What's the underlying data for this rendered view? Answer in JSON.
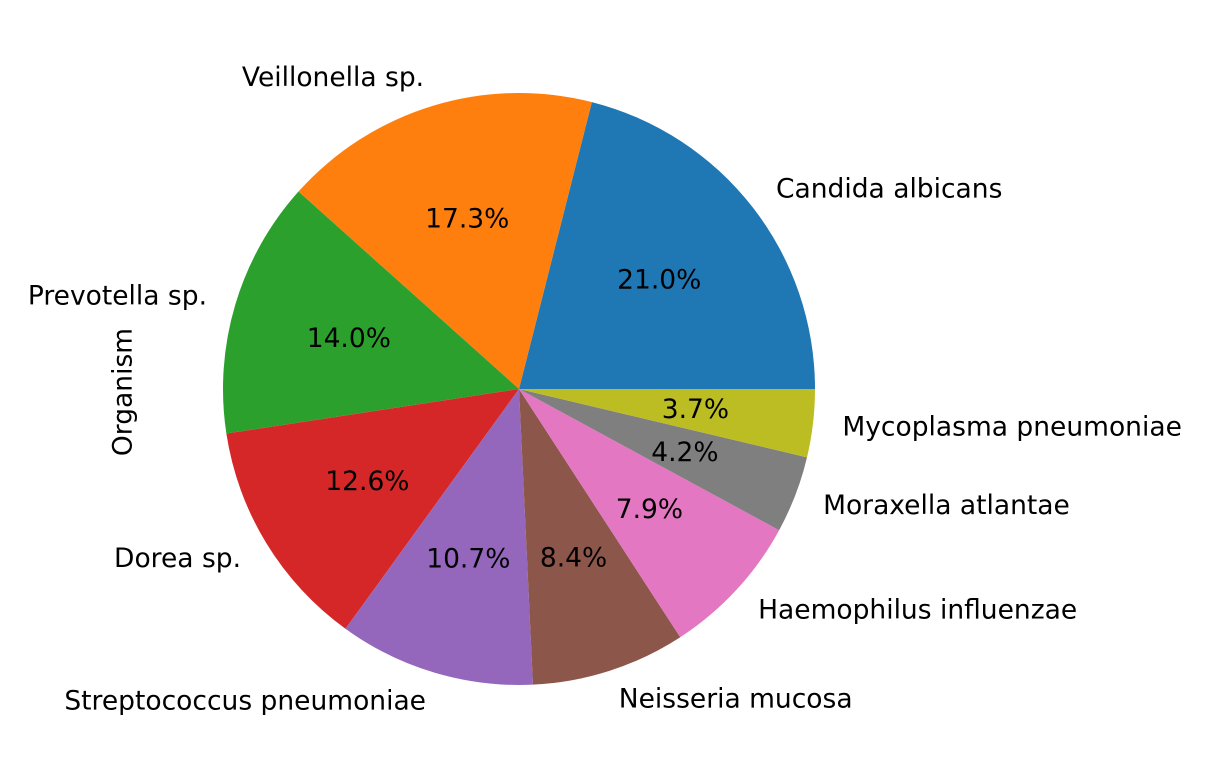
{
  "chart_data": {
    "type": "pie",
    "ylabel": "Organism",
    "start_angle_deg": 0,
    "direction": "counterclockwise",
    "slices": [
      {
        "label": "Candida albicans",
        "value": 21.0,
        "pct_label": "21.0%",
        "color": "#1f77b4"
      },
      {
        "label": "Veillonella sp.",
        "value": 17.3,
        "pct_label": "17.3%",
        "color": "#ff7f0e"
      },
      {
        "label": "Prevotella sp.",
        "value": 14.0,
        "pct_label": "14.0%",
        "color": "#2ca02c"
      },
      {
        "label": "Dorea sp.",
        "value": 12.6,
        "pct_label": "12.6%",
        "color": "#d62728"
      },
      {
        "label": "Streptococcus pneumoniae",
        "value": 10.7,
        "pct_label": "10.7%",
        "color": "#9467bd"
      },
      {
        "label": "Neisseria mucosa",
        "value": 8.4,
        "pct_label": "8.4%",
        "color": "#8c564b"
      },
      {
        "label": "Haemophilus influenzae",
        "value": 7.9,
        "pct_label": "7.9%",
        "color": "#e377c2"
      },
      {
        "label": "Moraxella atlantae",
        "value": 4.2,
        "pct_label": "4.2%",
        "color": "#7f7f7f"
      },
      {
        "label": "Mycoplasma pneumoniae",
        "value": 3.7,
        "pct_label": "3.7%",
        "color": "#bcbd22"
      }
    ]
  }
}
